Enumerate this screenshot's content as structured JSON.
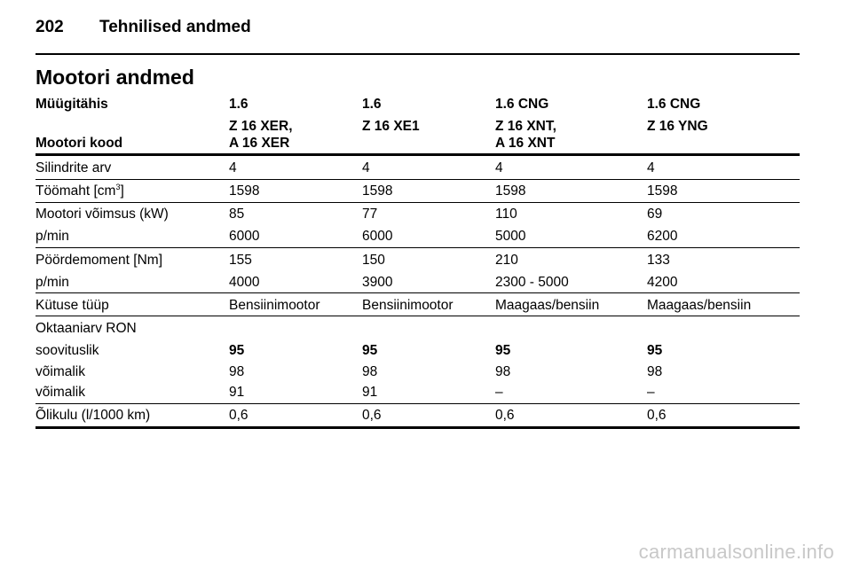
{
  "page": {
    "number": "202",
    "section": "Tehnilised andmed"
  },
  "title": "Mootori andmed",
  "header": {
    "sales_label": "Müügitähis",
    "code_label": "Mootori kood",
    "sales": [
      "1.6",
      "1.6",
      "1.6 CNG",
      "1.6 CNG"
    ],
    "code_line1": [
      "Z 16 XER,",
      "Z 16 XE1",
      "Z 16 XNT,",
      "Z 16 YNG"
    ],
    "code_line2": [
      "A 16 XER",
      "",
      "A 16 XNT",
      ""
    ]
  },
  "rows": {
    "cylinders": {
      "label": "Silindrite arv",
      "values": [
        "4",
        "4",
        "4",
        "4"
      ]
    },
    "displacement": {
      "label_pre": "Töömaht [cm",
      "label_sup": "3",
      "label_post": "]",
      "values": [
        "1598",
        "1598",
        "1598",
        "1598"
      ]
    },
    "power": {
      "label": "Mootori võimsus (kW)",
      "values": [
        "85",
        "77",
        "110",
        "69"
      ]
    },
    "power_rpm": {
      "label": "p/min",
      "values": [
        "6000",
        "6000",
        "5000",
        "6200"
      ]
    },
    "torque": {
      "label": "Pöördemoment [Nm]",
      "values": [
        "155",
        "150",
        "210",
        "133"
      ]
    },
    "torque_rpm": {
      "label": "p/min",
      "values": [
        "4000",
        "3900",
        "2300 - 5000",
        "4200"
      ]
    },
    "fuel": {
      "label": "Kütuse tüüp",
      "values": [
        "Bensiinimootor",
        "Bensiinimootor",
        "Maagaas/bensiin",
        "Maagaas/bensiin"
      ]
    },
    "octane": {
      "label": "Oktaaniarv RON"
    },
    "recommended": {
      "label": "soovituslik",
      "values": [
        "95",
        "95",
        "95",
        "95"
      ]
    },
    "possible1": {
      "label": "võimalik",
      "values": [
        "98",
        "98",
        "98",
        "98"
      ]
    },
    "possible2": {
      "label": "võimalik",
      "values": [
        "91",
        "91",
        "–",
        "–"
      ]
    },
    "oil": {
      "label": "Õlikulu (l/1000 km)",
      "values": [
        "0,6",
        "0,6",
        "0,6",
        "0,6"
      ]
    }
  },
  "watermark": "carmanualsonline.info"
}
